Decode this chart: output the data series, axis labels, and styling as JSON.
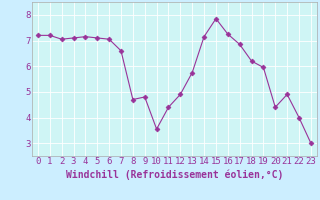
{
  "x": [
    0,
    1,
    2,
    3,
    4,
    5,
    6,
    7,
    8,
    9,
    10,
    11,
    12,
    13,
    14,
    15,
    16,
    17,
    18,
    19,
    20,
    21,
    22,
    23
  ],
  "y": [
    7.2,
    7.2,
    7.05,
    7.1,
    7.15,
    7.1,
    7.05,
    6.6,
    4.7,
    4.8,
    3.55,
    4.4,
    4.9,
    5.75,
    7.15,
    7.85,
    7.25,
    6.85,
    6.2,
    5.95,
    4.4,
    4.9,
    4.0,
    3.0
  ],
  "line_color": "#993399",
  "marker": "D",
  "marker_size": 2.5,
  "bg_color": "#cceeff",
  "plot_bg_color": "#cff5f5",
  "grid_color": "#aadddd",
  "xlabel": "Windchill (Refroidissement éolien,°C)",
  "ylim": [
    2.5,
    8.5
  ],
  "xlim": [
    -0.5,
    23.5
  ],
  "yticks": [
    3,
    4,
    5,
    6,
    7,
    8
  ],
  "xticks": [
    0,
    1,
    2,
    3,
    4,
    5,
    6,
    7,
    8,
    9,
    10,
    11,
    12,
    13,
    14,
    15,
    16,
    17,
    18,
    19,
    20,
    21,
    22,
    23
  ],
  "tick_label_fontsize": 6.5,
  "xlabel_fontsize": 7,
  "label_color": "#993399",
  "axis_color": "#993399",
  "spine_color": "#aaaaaa"
}
